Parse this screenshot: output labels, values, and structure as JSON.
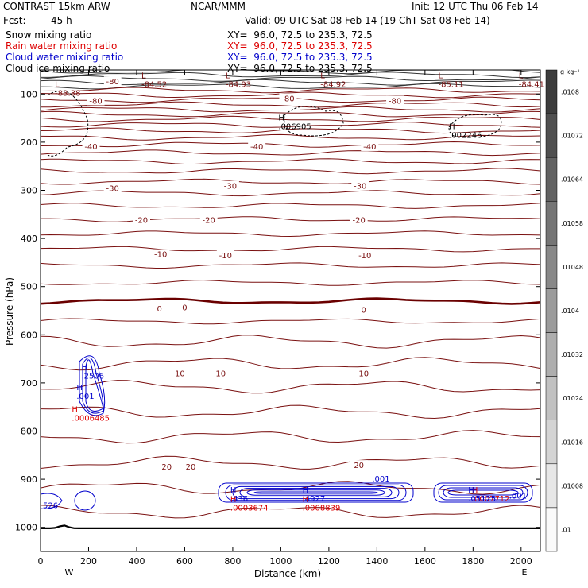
{
  "header": {
    "model": "CONTRAST 15km ARW",
    "org": "NCAR/MMM",
    "init": "Init: 12 UTC Thu 06 Feb 14",
    "fcst_label": "Fcst:",
    "fcst_value": "45 h",
    "valid": "Valid: 09 UTC Sat 08 Feb 14 (19 ChT Sat 08 Feb 14)"
  },
  "fields": [
    {
      "name": "Snow mixing ratio",
      "xy": "XY=  96.0, 72.5 to 235.3, 72.5",
      "color": "#000000"
    },
    {
      "name": "Rain water mixing ratio",
      "xy": "XY=  96.0, 72.5 to 235.3, 72.5",
      "color": "#dd0000"
    },
    {
      "name": "Cloud water mixing ratio",
      "xy": "XY=  96.0, 72.5 to 235.3, 72.5",
      "color": "#0000cc"
    },
    {
      "name": "Cloud ice mixing ratio",
      "xy": "XY=  96.0, 72.5 to 235.3, 72.5",
      "color": "#000000"
    }
  ],
  "colors": {
    "temperature": "#7a1010",
    "zero_line": "#6a0000",
    "rain": "#dd0000",
    "cloud": "#0000cc",
    "ice": "#000000"
  },
  "chart_data": {
    "type": "contour",
    "xlabel": "Distance (km)",
    "ylabel": "Pressure (hPa)",
    "xlim": [
      0,
      2080
    ],
    "ylim": [
      1050,
      50
    ],
    "x_ticks": [
      0,
      200,
      400,
      600,
      800,
      1000,
      1200,
      1400,
      1600,
      1800,
      2000
    ],
    "y_ticks": [
      100,
      200,
      300,
      400,
      500,
      600,
      700,
      800,
      900,
      1000
    ],
    "x_end_labels": [
      "W",
      "E"
    ],
    "colorbar": {
      "unit": "g kg⁻¹",
      "labels": [
        ".0108",
        ".01072",
        ".01064",
        ".01058",
        ".01048",
        ".0104",
        ".01032",
        ".01024",
        ".01016",
        ".01008",
        ".01"
      ]
    },
    "temperature_levels": [
      -80,
      -70,
      -60,
      -50,
      -40,
      -30,
      -20,
      -10,
      0,
      10,
      20
    ],
    "temperature_labels": [
      {
        "text": "-80",
        "x": 300,
        "p": 75
      },
      {
        "text": "-80",
        "x": 230,
        "p": 115
      },
      {
        "text": "-80",
        "x": 1030,
        "p": 110
      },
      {
        "text": "-80",
        "x": 1475,
        "p": 115
      },
      {
        "text": "-40",
        "x": 210,
        "p": 210
      },
      {
        "text": "-40",
        "x": 900,
        "p": 210
      },
      {
        "text": "-40",
        "x": 1370,
        "p": 210
      },
      {
        "text": "-30",
        "x": 300,
        "p": 297
      },
      {
        "text": "-30",
        "x": 790,
        "p": 292
      },
      {
        "text": "-30",
        "x": 1330,
        "p": 292
      },
      {
        "text": "-20",
        "x": 420,
        "p": 363
      },
      {
        "text": "-20",
        "x": 700,
        "p": 363
      },
      {
        "text": "-20",
        "x": 1325,
        "p": 363
      },
      {
        "text": "-10",
        "x": 500,
        "p": 434
      },
      {
        "text": "-10",
        "x": 770,
        "p": 436
      },
      {
        "text": "-10",
        "x": 1350,
        "p": 436
      },
      {
        "text": "0",
        "x": 495,
        "p": 547
      },
      {
        "text": "0",
        "x": 600,
        "p": 544
      },
      {
        "text": "0",
        "x": 1345,
        "p": 549
      },
      {
        "text": "10",
        "x": 580,
        "p": 681
      },
      {
        "text": "10",
        "x": 750,
        "p": 681
      },
      {
        "text": "10",
        "x": 1345,
        "p": 681
      },
      {
        "text": "20",
        "x": 525,
        "p": 875
      },
      {
        "text": "20",
        "x": 625,
        "p": 875
      },
      {
        "text": "20",
        "x": 1325,
        "p": 872
      }
    ],
    "extrema": [
      {
        "mark": "L",
        "value": "-83.38",
        "x": 60,
        "p": 95,
        "color": "#7a1010"
      },
      {
        "mark": "L",
        "value": "-84.52",
        "x": 420,
        "p": 77,
        "color": "#7a1010"
      },
      {
        "mark": "L",
        "value": "-84.93",
        "x": 770,
        "p": 77,
        "color": "#7a1010"
      },
      {
        "mark": "L",
        "value": "-84.92",
        "x": 1165,
        "p": 77,
        "color": "#7a1010"
      },
      {
        "mark": "L",
        "value": "-85.11",
        "x": 1655,
        "p": 77,
        "color": "#7a1010"
      },
      {
        "mark": "L",
        "value": "-84.41",
        "x": 1990,
        "p": 77,
        "color": "#7a1010"
      },
      {
        "mark": "H",
        "value": ".006905",
        "x": 990,
        "p": 165,
        "color": "#000000"
      },
      {
        "mark": "H",
        "value": ".002246",
        "x": 1700,
        "p": 183,
        "color": "#000000"
      },
      {
        "mark": "H",
        "value": ".2506",
        "x": 170,
        "p": 683,
        "color": "#0000cc"
      },
      {
        "mark": "H",
        "value": ".001",
        "x": 150,
        "p": 725,
        "color": "#0000cc"
      },
      {
        "mark": "H",
        "value": ".0006485",
        "x": 130,
        "p": 770,
        "color": "#dd0000"
      },
      {
        "mark": "H",
        "value": ".436",
        "x": 790,
        "p": 938,
        "color": "#0000cc"
      },
      {
        "mark": "H",
        "value": ".0003674",
        "x": 790,
        "p": 957,
        "color": "#dd0000"
      },
      {
        "mark": "H",
        "value": ".4927",
        "x": 1090,
        "p": 938,
        "color": "#0000cc"
      },
      {
        "mark": "H",
        "value": ".0008839",
        "x": 1090,
        "p": 957,
        "color": "#dd0000"
      },
      {
        "mark": "H",
        "value": ".0007712",
        "x": 1795,
        "p": 938,
        "color": "#dd0000"
      },
      {
        "mark": "H",
        "value": ".05125",
        "x": 1780,
        "p": 938,
        "color": "#0000cc"
      }
    ],
    "cloud_labels": [
      {
        "text": ".001",
        "x": 1380,
        "p": 905
      },
      {
        "text": ".001",
        "x": 1950,
        "p": 940
      },
      {
        "text": "526",
        "x": 10,
        "p": 960
      }
    ]
  }
}
